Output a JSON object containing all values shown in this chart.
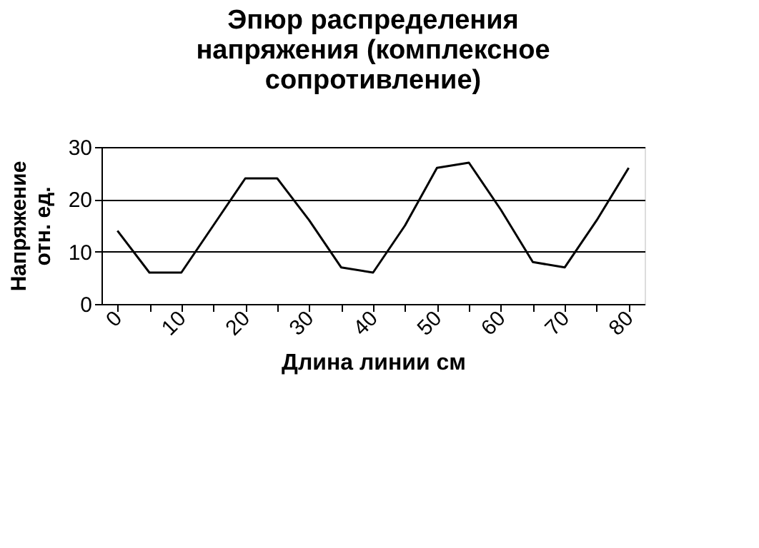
{
  "chart_data": {
    "type": "line",
    "title": [
      "Эпюр распределения",
      "напряжения (комплексное",
      "сопротивление)"
    ],
    "xlabel": "Длина линии см",
    "ylabel": [
      "Напряжение",
      "отн. ед."
    ],
    "categories": [
      "0",
      null,
      "10",
      null,
      "20",
      null,
      "30",
      null,
      "40",
      null,
      "50",
      null,
      "60",
      null,
      "70",
      null,
      "80"
    ],
    "values": [
      14,
      6,
      6,
      15,
      24,
      24,
      16,
      7,
      6,
      15,
      26,
      27,
      18,
      8,
      7,
      16,
      26
    ],
    "color": "#000000",
    "ylim": [
      0,
      30
    ],
    "yticks": [
      0,
      10,
      20,
      30
    ],
    "grid": "y",
    "marker": "none",
    "line_style": "solid"
  }
}
